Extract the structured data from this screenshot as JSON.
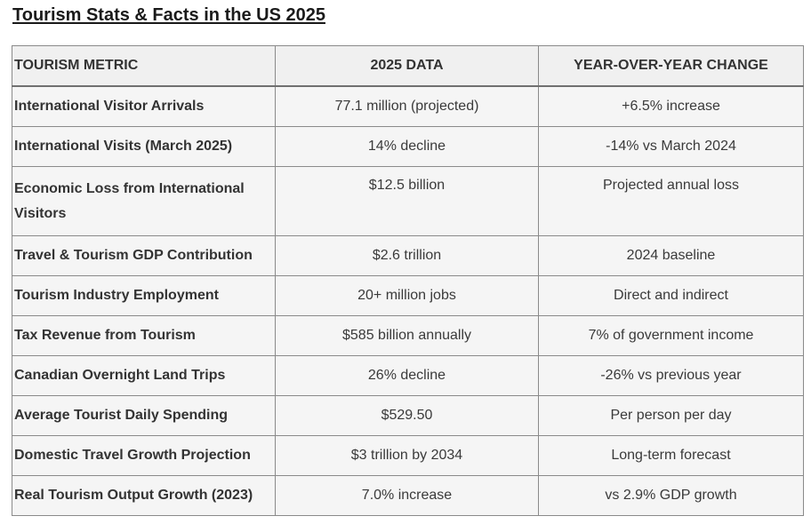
{
  "title": "Tourism Stats & Facts in the US 2025",
  "table": {
    "headers": [
      "TOURISM METRIC",
      "2025 DATA",
      "YEAR-OVER-YEAR CHANGE"
    ],
    "rows": [
      {
        "metric": "International Visitor Arrivals",
        "data": "77.1 million (projected)",
        "change": "+6.5% increase"
      },
      {
        "metric": "International Visits (March 2025)",
        "data": "14% decline",
        "change": "-14% vs March 2024"
      },
      {
        "metric": "Economic Loss from International Visitors",
        "data": "$12.5 billion",
        "change": "Projected annual loss"
      },
      {
        "metric": "Travel & Tourism GDP Contribution",
        "data": "$2.6 trillion",
        "change": "2024 baseline"
      },
      {
        "metric": "Tourism Industry Employment",
        "data": "20+ million jobs",
        "change": "Direct and indirect"
      },
      {
        "metric": "Tax Revenue from Tourism",
        "data": "$585 billion annually",
        "change": "7% of government income"
      },
      {
        "metric": "Canadian Overnight Land Trips",
        "data": "26% decline",
        "change": "-26% vs previous year"
      },
      {
        "metric": "Average Tourist Daily Spending",
        "data": "$529.50",
        "change": "Per person per day"
      },
      {
        "metric": "Domestic Travel Growth Projection",
        "data": "$3 trillion by 2034",
        "change": "Long-term forecast"
      },
      {
        "metric": "Real Tourism Output Growth (2023)",
        "data": "7.0% increase",
        "change": "vs 2.9% GDP growth"
      }
    ]
  }
}
